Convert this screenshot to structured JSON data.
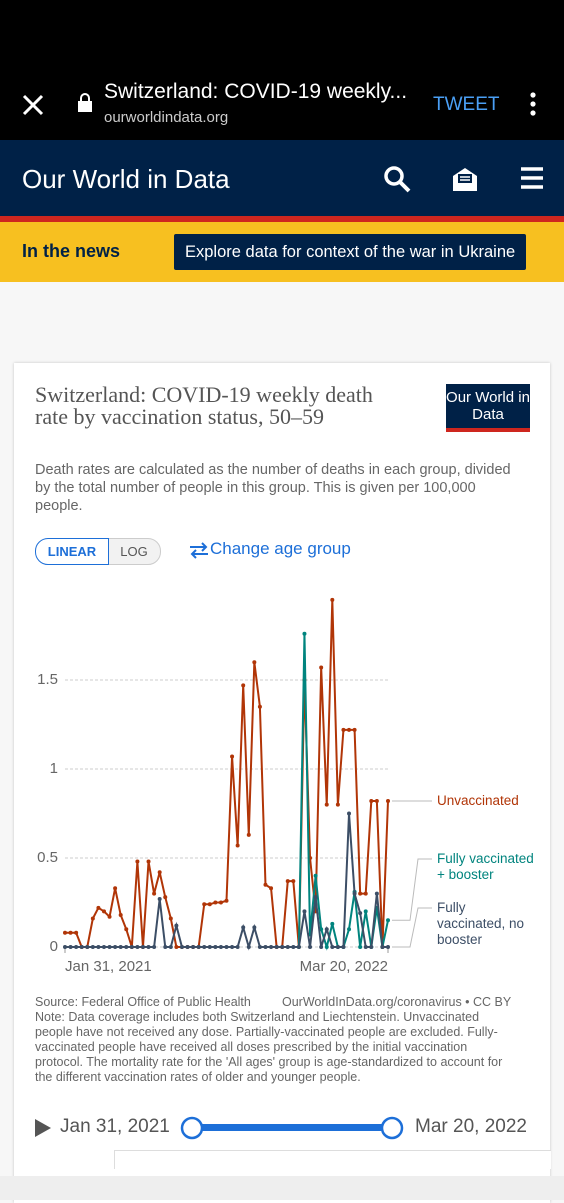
{
  "browser": {
    "title": "Switzerland: COVID-19 weekly...",
    "url": "ourworldindata.org",
    "action": "TWEET"
  },
  "site": {
    "name": "Our World in Data"
  },
  "news": {
    "label": "In the news",
    "link": "Explore data for context of the war in Ukraine"
  },
  "chart_data": {
    "type": "line",
    "title": "Switzerland: COVID-19 weekly death rate by vaccination status, 50–59",
    "subtitle": "Death rates are calculated as the number of deaths in each group, divided by the total number of people in this group. This is given per 100,000 people.",
    "logo": "Our World in Data",
    "scale_options": [
      "LINEAR",
      "LOG"
    ],
    "change_label": "Change age group",
    "categories": [
      "Jan 31, 2021",
      null,
      null,
      null,
      null,
      null,
      null,
      null,
      null,
      null,
      null,
      null,
      null,
      null,
      null,
      null,
      null,
      null,
      null,
      null,
      null,
      null,
      null,
      null,
      null,
      null,
      null,
      null,
      null,
      null,
      null,
      null,
      null,
      null,
      null,
      null,
      null,
      null,
      null,
      null,
      null,
      null,
      null,
      null,
      null,
      null,
      null,
      null,
      null,
      null,
      null,
      null,
      null,
      null,
      null,
      null,
      null,
      null,
      "Mar 20, 2022"
    ],
    "series": [
      {
        "name": "Unvaccinated",
        "color": "#b13507",
        "values": [
          0.08,
          0.08,
          0.08,
          0,
          0,
          0.16,
          0.22,
          0.2,
          0.17,
          0.33,
          0.18,
          0.1,
          0,
          0.48,
          0,
          0.48,
          0.3,
          0.42,
          0.28,
          0.16,
          0,
          0,
          0,
          0,
          0,
          0.24,
          0.24,
          0.25,
          0.25,
          0.26,
          1.07,
          0.57,
          1.47,
          0.63,
          1.6,
          1.35,
          0.35,
          0.33,
          0,
          0,
          0.37,
          0.37,
          0,
          1.5,
          0.5,
          0.2,
          1.57,
          0.8,
          1.95,
          0.8,
          1.22,
          1.22,
          1.22,
          0.3,
          0.3,
          0.82,
          0.82,
          0,
          0.82
        ]
      },
      {
        "name": "Fully vaccinated + booster",
        "color": "#00847e",
        "values": [
          null,
          null,
          null,
          null,
          null,
          null,
          null,
          null,
          null,
          null,
          null,
          null,
          null,
          null,
          null,
          null,
          null,
          null,
          null,
          null,
          null,
          null,
          null,
          null,
          null,
          null,
          null,
          null,
          null,
          null,
          null,
          null,
          null,
          null,
          null,
          null,
          null,
          null,
          null,
          null,
          null,
          null,
          0,
          1.76,
          0.07,
          0.4,
          0.1,
          0,
          0.13,
          0,
          0,
          0.1,
          0.31,
          0,
          0.2,
          0,
          0.22,
          0,
          0.15
        ]
      },
      {
        "name": "Fully vaccinated, no booster",
        "color": "#3c4e66",
        "values": [
          0,
          0,
          0,
          0,
          0,
          0,
          0,
          0,
          0,
          0,
          0,
          0,
          0,
          0,
          0,
          0,
          0,
          0.27,
          0,
          0,
          0.12,
          0,
          0,
          0,
          0,
          0,
          0,
          0,
          0,
          0,
          0,
          0,
          0.11,
          0,
          0.11,
          0,
          0,
          0,
          0,
          0,
          0,
          0,
          0,
          0.2,
          0,
          0.28,
          0,
          0.1,
          0,
          0,
          0,
          0.75,
          0.3,
          0.19,
          0,
          0,
          0.3,
          0,
          0
        ]
      }
    ],
    "ylim": [
      0,
      2
    ],
    "yticks": [
      0,
      0.5,
      1,
      1.5
    ],
    "grid": true,
    "source": "Source: Federal Office of Public Health",
    "credit": "OurWorldInData.org/coronavirus • CC BY",
    "note": "Note: Data coverage includes both Switzerland and Liechtenstein. Unvaccinated people have not received any dose. Partially-vaccinated people are excluded. Fully-vaccinated people have received all doses prescribed by the initial vaccination protocol. The mortality rate for the 'All ages' group is age-standardized to account for the different vaccination rates of older and younger people."
  },
  "timeline": {
    "start": "Jan 31, 2021",
    "end": "Mar 20, 2022"
  }
}
